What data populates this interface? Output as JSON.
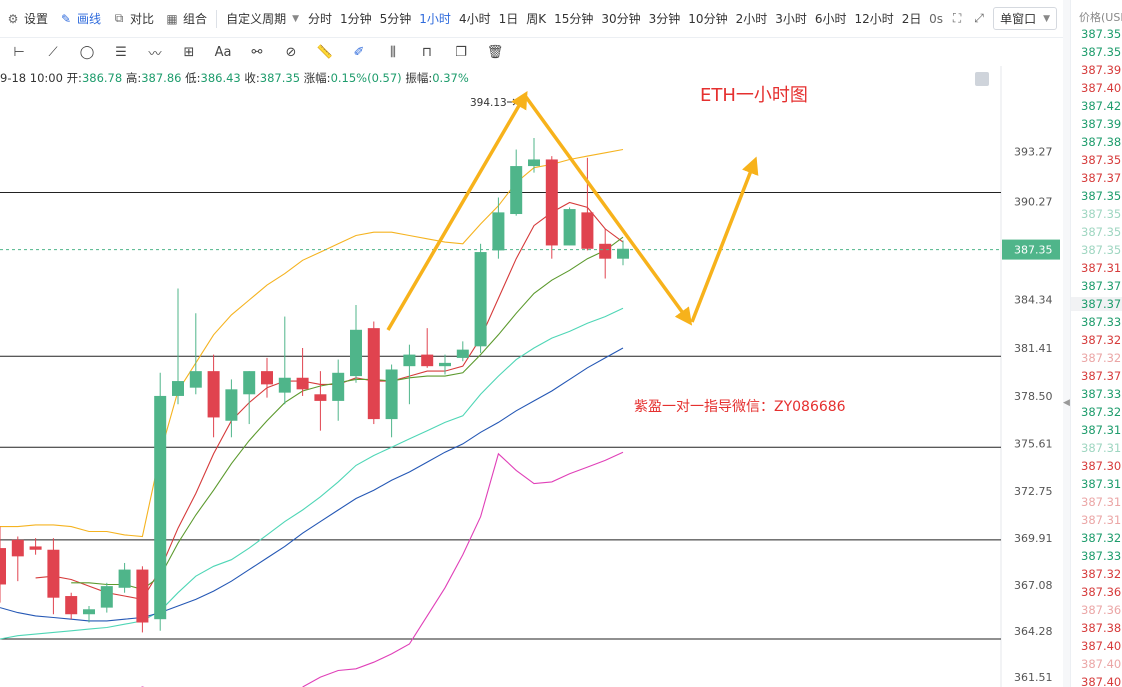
{
  "toolbar": {
    "settings_label": "设置",
    "draw_label": "画线",
    "compare_label": "对比",
    "combo_label": "组合",
    "custom_period_label": "自定义周期",
    "periods": [
      "分时",
      "1分钟",
      "5分钟",
      "1小时",
      "4小时",
      "1日",
      "周K",
      "15分钟",
      "30分钟",
      "3分钟",
      "10分钟",
      "2小时",
      "3小时",
      "6小时",
      "12小时",
      "2日"
    ],
    "active_period": "1小时",
    "countdown": "0s",
    "window_mode": "单窗口"
  },
  "ohlc": {
    "date": "9-18 10:00",
    "open_label": "开:",
    "open": "386.78",
    "high_label": "高:",
    "high": "387.86",
    "low_label": "低:",
    "low": "386.43",
    "close_label": "收:",
    "close": "387.35",
    "change_label": "涨幅:",
    "change": "0.15%(0.57)",
    "amplitude_label": "振幅:",
    "amplitude": "0.37%"
  },
  "annotations": {
    "title": "ETH一小时图",
    "contact": "紫盈一对一指导微信：ZY086686",
    "peak_label": "394.13"
  },
  "chart_data": {
    "type": "candlestick",
    "title": "ETH一小时图",
    "y_ticks": [
      "393.27",
      "390.27",
      "384.34",
      "381.41",
      "378.50",
      "375.61",
      "372.75",
      "369.91",
      "367.08",
      "364.28",
      "361.51"
    ],
    "current_price": "387.35",
    "ylim": [
      360.9,
      397.0
    ],
    "horizontal_levels": [
      390.8,
      380.9,
      375.4,
      369.8,
      363.8
    ],
    "candles": [
      {
        "o": 369.3,
        "h": 370.6,
        "l": 366.0,
        "c": 367.1
      },
      {
        "o": 369.8,
        "h": 370.0,
        "l": 367.3,
        "c": 368.8
      },
      {
        "o": 369.4,
        "h": 369.9,
        "l": 368.9,
        "c": 369.2
      },
      {
        "o": 369.2,
        "h": 369.9,
        "l": 365.3,
        "c": 366.3
      },
      {
        "o": 366.4,
        "h": 366.6,
        "l": 365.0,
        "c": 365.3
      },
      {
        "o": 365.3,
        "h": 365.8,
        "l": 364.8,
        "c": 365.6
      },
      {
        "o": 365.7,
        "h": 367.2,
        "l": 365.4,
        "c": 367.0
      },
      {
        "o": 366.9,
        "h": 368.4,
        "l": 366.6,
        "c": 368.0
      },
      {
        "o": 368.0,
        "h": 368.2,
        "l": 364.2,
        "c": 364.8
      },
      {
        "o": 365.0,
        "h": 379.9,
        "l": 364.3,
        "c": 378.5
      },
      {
        "o": 378.5,
        "h": 385.0,
        "l": 378.0,
        "c": 379.4
      },
      {
        "o": 379.0,
        "h": 383.5,
        "l": 378.6,
        "c": 380.0
      },
      {
        "o": 380.0,
        "h": 381.0,
        "l": 376.0,
        "c": 377.2
      },
      {
        "o": 377.0,
        "h": 379.5,
        "l": 376.0,
        "c": 378.9
      },
      {
        "o": 378.6,
        "h": 380.0,
        "l": 376.8,
        "c": 380.0
      },
      {
        "o": 380.0,
        "h": 380.8,
        "l": 378.4,
        "c": 379.2
      },
      {
        "o": 378.7,
        "h": 383.3,
        "l": 378.0,
        "c": 379.6
      },
      {
        "o": 379.6,
        "h": 381.4,
        "l": 378.5,
        "c": 378.9
      },
      {
        "o": 378.6,
        "h": 380.0,
        "l": 376.4,
        "c": 378.2
      },
      {
        "o": 378.2,
        "h": 380.7,
        "l": 377.0,
        "c": 379.9
      },
      {
        "o": 379.7,
        "h": 384.0,
        "l": 379.3,
        "c": 382.5
      },
      {
        "o": 382.6,
        "h": 383.0,
        "l": 376.8,
        "c": 377.1
      },
      {
        "o": 377.1,
        "h": 380.4,
        "l": 376.0,
        "c": 380.1
      },
      {
        "o": 380.3,
        "h": 381.6,
        "l": 378.0,
        "c": 381.0
      },
      {
        "o": 381.0,
        "h": 382.6,
        "l": 380.2,
        "c": 380.3
      },
      {
        "o": 380.3,
        "h": 381.0,
        "l": 379.8,
        "c": 380.5
      },
      {
        "o": 380.8,
        "h": 381.8,
        "l": 380.6,
        "c": 381.3
      },
      {
        "o": 381.5,
        "h": 387.7,
        "l": 381.1,
        "c": 387.2
      },
      {
        "o": 387.3,
        "h": 390.5,
        "l": 386.8,
        "c": 389.6
      },
      {
        "o": 389.5,
        "h": 393.4,
        "l": 389.4,
        "c": 392.4
      },
      {
        "o": 392.4,
        "h": 394.1,
        "l": 392.0,
        "c": 392.8
      },
      {
        "o": 392.8,
        "h": 393.0,
        "l": 386.8,
        "c": 387.6
      },
      {
        "o": 387.6,
        "h": 389.9,
        "l": 387.6,
        "c": 389.8
      },
      {
        "o": 389.6,
        "h": 392.9,
        "l": 387.3,
        "c": 387.4
      },
      {
        "o": 387.7,
        "h": 388.6,
        "l": 385.6,
        "c": 386.8
      },
      {
        "o": 386.8,
        "h": 387.9,
        "l": 386.4,
        "c": 387.4
      }
    ],
    "ma_series": [
      {
        "color": "#f5b320",
        "values": [
          370.6,
          370.6,
          370.7,
          370.7,
          370.6,
          370.3,
          370.3,
          370.1,
          370.0,
          375.0,
          378.8,
          380.5,
          382.2,
          383.4,
          384.3,
          385.2,
          385.9,
          386.7,
          387.2,
          387.7,
          388.2,
          388.4,
          388.4,
          388.2,
          388.0,
          387.8,
          387.7,
          388.9,
          390.0,
          391.4,
          392.3,
          392.5,
          392.8,
          393.0,
          393.2,
          393.4
        ]
      },
      {
        "color": "#d63b3b",
        "values": [
          null,
          null,
          367.5,
          367.6,
          367.4,
          367.0,
          366.6,
          366.4,
          366.2,
          368.0,
          370.5,
          372.6,
          375.0,
          377.0,
          378.1,
          379.0,
          379.4,
          379.4,
          379.2,
          379.2,
          379.6,
          379.4,
          379.4,
          379.7,
          380.0,
          380.0,
          380.3,
          382.0,
          384.4,
          386.8,
          388.8,
          389.6,
          390.2,
          389.9,
          388.6,
          387.8
        ]
      },
      {
        "color": "#5c9a2e",
        "values": [
          null,
          null,
          null,
          null,
          367.2,
          367.2,
          367.1,
          367.1,
          366.8,
          367.6,
          369.6,
          371.3,
          372.8,
          374.4,
          375.8,
          377.0,
          378.1,
          378.8,
          379.1,
          379.3,
          379.5,
          379.5,
          379.4,
          379.6,
          379.7,
          379.7,
          379.9,
          381.0,
          382.2,
          383.5,
          384.7,
          385.5,
          386.1,
          386.8,
          387.3,
          388.1
        ]
      },
      {
        "color": "#4fd6b6",
        "values": [
          363.8,
          364.0,
          364.1,
          364.2,
          364.3,
          364.4,
          364.5,
          364.7,
          364.9,
          365.5,
          366.6,
          367.6,
          368.2,
          368.6,
          369.3,
          370.1,
          370.9,
          371.6,
          372.4,
          373.3,
          374.3,
          374.9,
          375.4,
          375.9,
          376.4,
          376.9,
          377.3,
          378.6,
          379.7,
          380.7,
          381.4,
          382.0,
          382.4,
          382.9,
          383.3,
          383.8
        ]
      },
      {
        "color": "#2558b5",
        "values": [
          365.7,
          365.4,
          365.2,
          365.1,
          365.0,
          364.9,
          364.9,
          365.0,
          365.1,
          365.4,
          365.8,
          366.2,
          366.7,
          367.3,
          368.0,
          368.7,
          369.4,
          370.2,
          370.9,
          371.6,
          372.3,
          372.8,
          373.4,
          373.9,
          374.5,
          375.1,
          375.6,
          376.3,
          376.9,
          377.6,
          378.2,
          378.8,
          379.5,
          380.2,
          380.8,
          381.4
        ]
      },
      {
        "color": "#e040b8",
        "values": [
          null,
          null,
          null,
          null,
          null,
          null,
          null,
          360.5,
          360.9,
          360.6,
          null,
          null,
          null,
          null,
          null,
          null,
          null,
          360.9,
          361.5,
          361.9,
          362.0,
          362.4,
          362.9,
          363.5,
          365.2,
          366.9,
          368.9,
          371.2,
          375.0,
          374.0,
          373.2,
          373.3,
          373.8,
          374.2,
          374.6,
          375.1
        ]
      }
    ]
  },
  "price_column": {
    "header": "价格(USDT)",
    "values": [
      {
        "v": "387.35",
        "c": "#1e9c6c"
      },
      {
        "v": "387.35",
        "c": "#1e9c6c"
      },
      {
        "v": "387.39",
        "c": "#d63b3b"
      },
      {
        "v": "387.40",
        "c": "#d63b3b"
      },
      {
        "v": "387.42",
        "c": "#1e9c6c"
      },
      {
        "v": "387.39",
        "c": "#1e9c6c"
      },
      {
        "v": "387.38",
        "c": "#1e9c6c"
      },
      {
        "v": "387.35",
        "c": "#d63b3b"
      },
      {
        "v": "387.37",
        "c": "#d63b3b"
      },
      {
        "v": "387.35",
        "c": "#1e9c6c"
      },
      {
        "v": "387.35",
        "c": "#9fd6c1"
      },
      {
        "v": "387.35",
        "c": "#9fd6c1"
      },
      {
        "v": "387.35",
        "c": "#9fd6c1"
      },
      {
        "v": "387.31",
        "c": "#d63b3b"
      },
      {
        "v": "387.37",
        "c": "#1e9c6c"
      },
      {
        "v": "387.37",
        "c": "#1e9c6c"
      },
      {
        "v": "387.33",
        "c": "#1e9c6c"
      },
      {
        "v": "387.32",
        "c": "#d63b3b"
      },
      {
        "v": "387.32",
        "c": "#eba6a6"
      },
      {
        "v": "387.37",
        "c": "#d63b3b"
      },
      {
        "v": "387.33",
        "c": "#1e9c6c"
      },
      {
        "v": "387.32",
        "c": "#1e9c6c"
      },
      {
        "v": "387.31",
        "c": "#1e9c6c"
      },
      {
        "v": "387.31",
        "c": "#9fd6c1"
      },
      {
        "v": "387.30",
        "c": "#d63b3b"
      },
      {
        "v": "387.31",
        "c": "#1e9c6c"
      },
      {
        "v": "387.31",
        "c": "#eba6a6"
      },
      {
        "v": "387.31",
        "c": "#eba6a6"
      },
      {
        "v": "387.32",
        "c": "#1e9c6c"
      },
      {
        "v": "387.33",
        "c": "#1e9c6c"
      },
      {
        "v": "387.32",
        "c": "#d63b3b"
      },
      {
        "v": "387.36",
        "c": "#d63b3b"
      },
      {
        "v": "387.36",
        "c": "#eba6a6"
      },
      {
        "v": "387.38",
        "c": "#d63b3b"
      },
      {
        "v": "387.40",
        "c": "#d63b3b"
      },
      {
        "v": "387.40",
        "c": "#eba6a6"
      },
      {
        "v": "387.40",
        "c": "#d63b3b"
      }
    ]
  },
  "colors": {
    "up": "#4fb58a",
    "down": "#e0434f",
    "accent": "#2f6bdc",
    "arrow": "#f7b21b",
    "annotation_red": "#e5302f"
  }
}
